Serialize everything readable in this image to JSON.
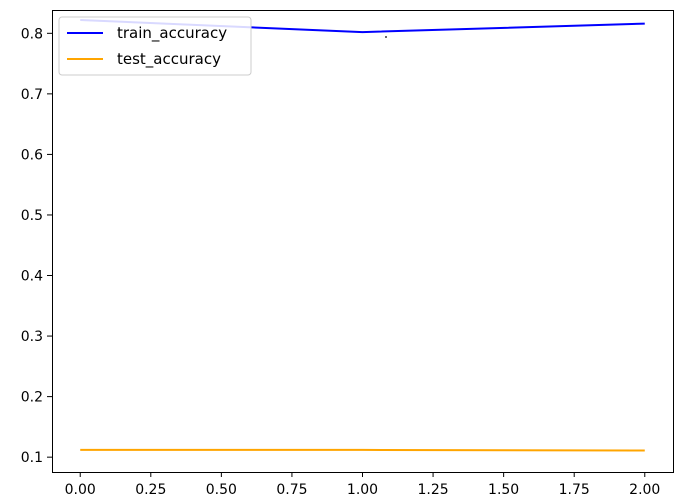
{
  "chart_data": {
    "type": "line",
    "x": [
      0.0,
      1.0,
      2.0
    ],
    "series": [
      {
        "name": "train_accuracy",
        "values": [
          0.822,
          0.802,
          0.816
        ],
        "color": "#0000ff"
      },
      {
        "name": "test_accuracy",
        "values": [
          0.112,
          0.112,
          0.111
        ],
        "color": "#ffa500"
      }
    ],
    "xlim": [
      -0.1,
      2.1
    ],
    "ylim": [
      0.0755,
      0.8385
    ],
    "xticks": [
      0.0,
      0.25,
      0.5,
      0.75,
      1.0,
      1.25,
      1.5,
      1.75,
      2.0
    ],
    "xtick_labels": [
      "0.00",
      "0.25",
      "0.50",
      "0.75",
      "1.00",
      "1.25",
      "1.50",
      "1.75",
      "2.00"
    ],
    "yticks": [
      0.1,
      0.2,
      0.3,
      0.4,
      0.5,
      0.6,
      0.7,
      0.8
    ],
    "ytick_labels": [
      "0.1",
      "0.2",
      "0.3",
      "0.4",
      "0.5",
      "0.6",
      "0.7",
      "0.8"
    ],
    "title": "",
    "xlabel": "",
    "ylabel": "",
    "grid": false,
    "legend_position": "top-left"
  }
}
